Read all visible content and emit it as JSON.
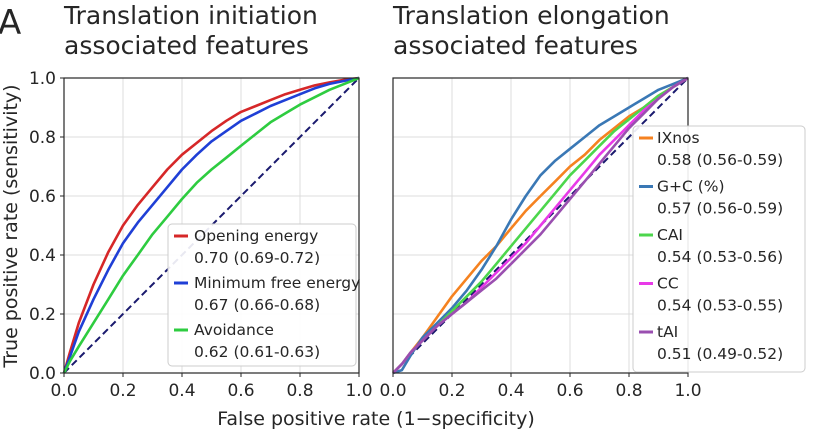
{
  "panel_letter": "A",
  "shared_xlabel": "False positive rate (1−specificity)",
  "shared_ylabel": "True positive rate (sensitivity)",
  "chart_data": [
    {
      "type": "line",
      "title_lines": [
        "Translation initiation",
        "associated features"
      ],
      "xlim": [
        0,
        1
      ],
      "ylim": [
        0,
        1
      ],
      "xticks": [
        "0.0",
        "0.2",
        "0.4",
        "0.6",
        "0.8",
        "1.0"
      ],
      "yticks": [
        "0.0",
        "0.2",
        "0.4",
        "0.6",
        "0.8",
        "1.0"
      ],
      "grid": true,
      "legend_position": "lower-right",
      "diagonal_color": "#1a1a6e",
      "series": [
        {
          "name": "Opening energy",
          "auc_label": "0.70 (0.69-0.72)",
          "color": "#d62728",
          "x": [
            0,
            0.02,
            0.05,
            0.1,
            0.15,
            0.2,
            0.25,
            0.3,
            0.35,
            0.4,
            0.45,
            0.5,
            0.55,
            0.6,
            0.65,
            0.7,
            0.75,
            0.8,
            0.85,
            0.9,
            0.95,
            1.0
          ],
          "y": [
            0,
            0.07,
            0.17,
            0.3,
            0.41,
            0.5,
            0.57,
            0.63,
            0.69,
            0.74,
            0.78,
            0.82,
            0.855,
            0.885,
            0.905,
            0.925,
            0.945,
            0.96,
            0.975,
            0.985,
            0.994,
            1.0
          ]
        },
        {
          "name": "Minimum free energy",
          "auc_label": "0.67 (0.66-0.68)",
          "color": "#1f3fd6",
          "x": [
            0,
            0.02,
            0.05,
            0.1,
            0.15,
            0.2,
            0.25,
            0.3,
            0.35,
            0.4,
            0.45,
            0.5,
            0.55,
            0.6,
            0.65,
            0.7,
            0.75,
            0.8,
            0.85,
            0.9,
            0.95,
            1.0
          ],
          "y": [
            0,
            0.055,
            0.14,
            0.25,
            0.35,
            0.44,
            0.51,
            0.57,
            0.63,
            0.69,
            0.74,
            0.785,
            0.82,
            0.855,
            0.88,
            0.905,
            0.925,
            0.945,
            0.965,
            0.98,
            0.99,
            1.0
          ]
        },
        {
          "name": "Avoidance",
          "auc_label": "0.62 (0.61-0.63)",
          "color": "#2ecc40",
          "x": [
            0,
            0.02,
            0.05,
            0.1,
            0.15,
            0.2,
            0.25,
            0.3,
            0.35,
            0.4,
            0.45,
            0.5,
            0.55,
            0.6,
            0.65,
            0.7,
            0.75,
            0.8,
            0.85,
            0.9,
            0.95,
            1.0
          ],
          "y": [
            0,
            0.04,
            0.09,
            0.17,
            0.25,
            0.33,
            0.4,
            0.47,
            0.53,
            0.59,
            0.645,
            0.69,
            0.73,
            0.77,
            0.81,
            0.85,
            0.88,
            0.91,
            0.935,
            0.96,
            0.98,
            1.0
          ]
        }
      ]
    },
    {
      "type": "line",
      "title_lines": [
        "Translation elongation",
        "associated features"
      ],
      "xlim": [
        0,
        1
      ],
      "ylim": [
        0,
        1
      ],
      "xticks": [
        "0.0",
        "0.2",
        "0.4",
        "0.6",
        "0.8",
        "1.0"
      ],
      "yticks": [],
      "grid": true,
      "legend_position": "right",
      "diagonal_color": "#1a1a6e",
      "series": [
        {
          "name": "IXnos",
          "auc_label": "0.58 (0.56-0.59)",
          "color": "#f58220",
          "x": [
            0,
            0.03,
            0.06,
            0.1,
            0.15,
            0.2,
            0.25,
            0.3,
            0.35,
            0.4,
            0.45,
            0.5,
            0.55,
            0.6,
            0.65,
            0.7,
            0.75,
            0.8,
            0.85,
            0.9,
            0.95,
            1.0
          ],
          "y": [
            0,
            0.03,
            0.07,
            0.12,
            0.19,
            0.26,
            0.32,
            0.38,
            0.43,
            0.49,
            0.55,
            0.6,
            0.65,
            0.7,
            0.74,
            0.79,
            0.83,
            0.87,
            0.9,
            0.94,
            0.97,
            1.0
          ]
        },
        {
          "name": "G+C (%)",
          "auc_label": "0.57 (0.56-0.59)",
          "color": "#3a78b5",
          "x": [
            0,
            0.03,
            0.06,
            0.1,
            0.15,
            0.2,
            0.25,
            0.3,
            0.35,
            0.4,
            0.45,
            0.5,
            0.55,
            0.6,
            0.65,
            0.7,
            0.75,
            0.8,
            0.85,
            0.9,
            0.95,
            1.0
          ],
          "y": [
            0,
            0.01,
            0.06,
            0.12,
            0.17,
            0.22,
            0.28,
            0.35,
            0.43,
            0.52,
            0.6,
            0.67,
            0.72,
            0.76,
            0.8,
            0.84,
            0.87,
            0.9,
            0.93,
            0.96,
            0.98,
            1.0
          ]
        },
        {
          "name": "CAI",
          "auc_label": "0.54 (0.53-0.56)",
          "color": "#4cd64c",
          "x": [
            0,
            0.03,
            0.06,
            0.1,
            0.15,
            0.2,
            0.25,
            0.3,
            0.35,
            0.4,
            0.45,
            0.5,
            0.55,
            0.6,
            0.65,
            0.7,
            0.75,
            0.8,
            0.85,
            0.9,
            0.95,
            1.0
          ],
          "y": [
            0,
            0.03,
            0.07,
            0.11,
            0.16,
            0.21,
            0.26,
            0.31,
            0.37,
            0.43,
            0.49,
            0.55,
            0.61,
            0.67,
            0.72,
            0.77,
            0.82,
            0.86,
            0.9,
            0.94,
            0.97,
            1.0
          ]
        },
        {
          "name": "CC",
          "auc_label": "0.54 (0.53-0.55)",
          "color": "#e83ae8",
          "x": [
            0,
            0.03,
            0.06,
            0.1,
            0.15,
            0.2,
            0.25,
            0.3,
            0.35,
            0.4,
            0.45,
            0.5,
            0.55,
            0.6,
            0.65,
            0.7,
            0.75,
            0.8,
            0.85,
            0.9,
            0.95,
            1.0
          ],
          "y": [
            0,
            0.03,
            0.07,
            0.11,
            0.16,
            0.2,
            0.24,
            0.29,
            0.34,
            0.39,
            0.44,
            0.5,
            0.56,
            0.62,
            0.68,
            0.74,
            0.79,
            0.84,
            0.89,
            0.93,
            0.97,
            1.0
          ]
        },
        {
          "name": "tAI",
          "auc_label": "0.51 (0.49-0.52)",
          "color": "#9a4fb0",
          "x": [
            0,
            0.03,
            0.06,
            0.1,
            0.15,
            0.2,
            0.25,
            0.3,
            0.35,
            0.4,
            0.45,
            0.5,
            0.55,
            0.6,
            0.65,
            0.7,
            0.75,
            0.8,
            0.85,
            0.9,
            0.95,
            1.0
          ],
          "y": [
            0,
            0.03,
            0.07,
            0.11,
            0.16,
            0.2,
            0.24,
            0.28,
            0.32,
            0.37,
            0.42,
            0.47,
            0.53,
            0.59,
            0.65,
            0.71,
            0.77,
            0.83,
            0.88,
            0.93,
            0.97,
            1.0
          ]
        }
      ]
    }
  ]
}
